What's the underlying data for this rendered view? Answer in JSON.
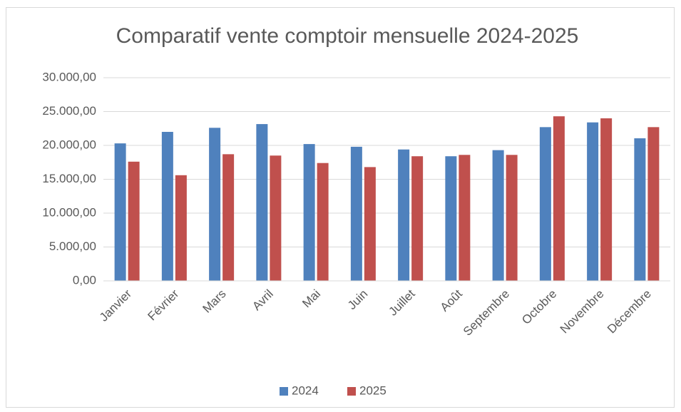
{
  "chart_data": {
    "type": "bar",
    "title": "Comparatif vente comptoir mensuelle 2024-2025",
    "categories": [
      "Janvier",
      "Février",
      "Mars",
      "Avril",
      "Mai",
      "Juin",
      "Juillet",
      "Août",
      "Septembre",
      "Octobre",
      "Novembre",
      "Décembre"
    ],
    "series": [
      {
        "name": "2024",
        "color": "#4f81bd",
        "values": [
          20300,
          22000,
          22600,
          23150,
          20200,
          19800,
          19400,
          18400,
          19300,
          22700,
          23400,
          21050
        ]
      },
      {
        "name": "2025",
        "color": "#c0504d",
        "values": [
          17600,
          15600,
          18700,
          18500,
          17400,
          16800,
          18400,
          18600,
          18600,
          24300,
          24000,
          22700
        ]
      }
    ],
    "ylim": [
      0,
      30000
    ],
    "yticks": [
      {
        "value": 0,
        "label": "0,00"
      },
      {
        "value": 5000,
        "label": "5.000,00"
      },
      {
        "value": 10000,
        "label": "10.000,00"
      },
      {
        "value": 15000,
        "label": "15.000,00"
      },
      {
        "value": 20000,
        "label": "20.000,00"
      },
      {
        "value": 25000,
        "label": "25.000,00"
      },
      {
        "value": 30000,
        "label": "30.000,00"
      }
    ],
    "grid": true,
    "legend": "bottom"
  }
}
